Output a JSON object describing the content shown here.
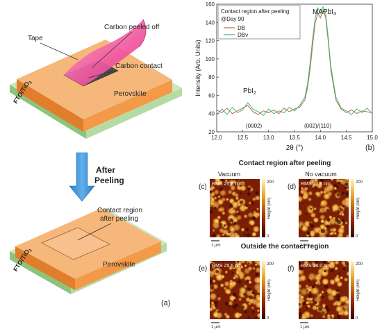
{
  "panel_a": {
    "labels": {
      "tape": "Tape",
      "carbon_peeled": "Carbon peeled off",
      "carbon_contact": "Carbon contact",
      "perovskite_top": "Perovskite",
      "fto_top": "FTO/TiO",
      "fto_top_sub": "2",
      "after_peeling_1": "After",
      "after_peeling_2": "Peeling",
      "contact_region_1": "Contact region",
      "contact_region_2": "after peeling",
      "perovskite_bottom": "Perovskite",
      "fto_bottom": "FTO/TiO",
      "fto_bottom_sub": "2",
      "panel_label": "(a)"
    },
    "colors": {
      "perovskite": "#f4a15a",
      "substrate": "#a9d49a",
      "tape": "#f05aa8",
      "arrow": "#3c8fd4"
    }
  },
  "panel_b": {
    "legend": {
      "line1": "Contact region after peeling",
      "line2": "@Day 90",
      "series1": "DB",
      "series2": "DBv"
    },
    "peak_labels": {
      "mapbi": "MAPbI",
      "mapbi_sub": "3",
      "pbi": "PbI",
      "pbi_sub": "2",
      "hkl_left": "(0002)",
      "hkl_right": "(002)/(110)"
    },
    "panel_label": "(b)"
  },
  "chart_data": {
    "type": "line",
    "xlabel": "2θ (°)",
    "ylabel": "Intensity (Arb. Units)",
    "xlim": [
      12.0,
      15.0
    ],
    "ylim": [
      20,
      160
    ],
    "x_ticks": [
      "12.0",
      "12.5",
      "13.0",
      "13.5",
      "14.0",
      "14.5",
      "15.0"
    ],
    "y_ticks": [
      "20",
      "40",
      "60",
      "80",
      "100",
      "120",
      "140",
      "160"
    ],
    "series": [
      {
        "name": "DB",
        "color": "#b8674a",
        "x": [
          12.0,
          12.1,
          12.2,
          12.3,
          12.4,
          12.5,
          12.6,
          12.7,
          12.8,
          12.9,
          13.0,
          13.1,
          13.2,
          13.3,
          13.4,
          13.5,
          13.6,
          13.7,
          13.75,
          13.8,
          13.85,
          13.9,
          13.95,
          14.0,
          14.05,
          14.1,
          14.15,
          14.2,
          14.3,
          14.4,
          14.5,
          14.6,
          14.7,
          14.8,
          14.9,
          15.0
        ],
        "y": [
          44,
          41,
          46,
          40,
          43,
          46,
          49,
          42,
          39,
          43,
          41,
          44,
          40,
          46,
          42,
          45,
          47,
          55,
          68,
          88,
          115,
          140,
          150,
          145,
          153,
          146,
          120,
          88,
          55,
          45,
          41,
          44,
          40,
          43,
          42,
          41
        ]
      },
      {
        "name": "DBv",
        "color": "#3cb878",
        "x": [
          12.0,
          12.1,
          12.2,
          12.3,
          12.4,
          12.5,
          12.6,
          12.7,
          12.8,
          12.9,
          13.0,
          13.1,
          13.2,
          13.3,
          13.4,
          13.5,
          13.6,
          13.7,
          13.75,
          13.8,
          13.85,
          13.9,
          13.95,
          14.0,
          14.05,
          14.1,
          14.15,
          14.2,
          14.3,
          14.4,
          14.5,
          14.6,
          14.7,
          14.8,
          14.9,
          15.0
        ],
        "y": [
          38,
          45,
          39,
          47,
          41,
          44,
          52,
          45,
          42,
          38,
          45,
          40,
          43,
          41,
          47,
          43,
          49,
          58,
          72,
          95,
          122,
          145,
          156,
          150,
          157,
          150,
          124,
          92,
          58,
          46,
          43,
          39,
          45,
          41,
          46,
          40
        ]
      }
    ]
  },
  "afm": {
    "title_top": "Contact region after peeling",
    "title_bottom": "Outside the contact region",
    "colorbar_label": "Height (nm)",
    "colorbar_max": "200",
    "colorbar_min": "0",
    "scale_bar": "1 μm",
    "panels": [
      {
        "label": "(c)",
        "title": "Vacuum",
        "rms": "RMS 25.9 nm"
      },
      {
        "label": "(d)",
        "title": "No vacuum",
        "rms": "RMS 27.6 nm"
      },
      {
        "label": "(e)",
        "title": "",
        "rms": "RMS 25.6 nm"
      },
      {
        "label": "(f)",
        "title": "",
        "rms": "RMS 24.0 nm"
      }
    ]
  }
}
